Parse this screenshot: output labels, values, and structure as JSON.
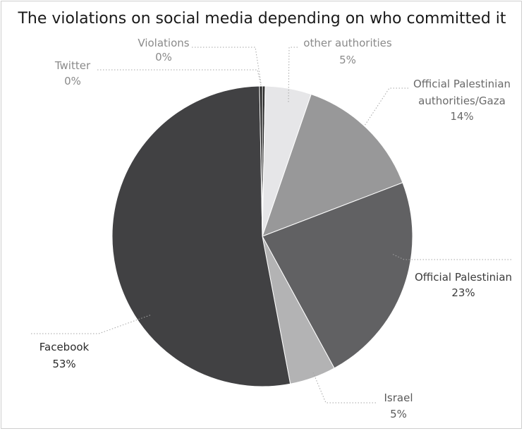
{
  "chart_data": {
    "type": "pie",
    "title": "The violations on social media depending on who committed it",
    "start_angle_deg": 0,
    "direction": "clockwise",
    "slices": [
      {
        "label": "Violations",
        "value_label": "0%",
        "value": 0.3,
        "color": "#2e2e2e",
        "label_color": "#8a8a8a"
      },
      {
        "label": "other authorities",
        "value_label": "5%",
        "value": 5,
        "color": "#e6e6e8",
        "label_color": "#8a8a8a"
      },
      {
        "label": "Official Palestinian authorities/Gaza",
        "value_label": "14%",
        "value": 14,
        "color": "#989899",
        "label_color": "#6a6a6a"
      },
      {
        "label": "Official Palestinian",
        "value_label": "23%",
        "value": 23,
        "color": "#616163",
        "label_color": "#3c3c3c"
      },
      {
        "label": "Israel",
        "value_label": "5%",
        "value": 5,
        "color": "#b3b3b4",
        "label_color": "#5a5a5a"
      },
      {
        "label": "Facebook",
        "value_label": "53%",
        "value": 53,
        "color": "#414143",
        "label_color": "#2b2b2b"
      },
      {
        "label": "Twitter",
        "value_label": "0%",
        "value": 0.3,
        "color": "#1e1e1e",
        "label_color": "#8a8a8a"
      }
    ]
  }
}
